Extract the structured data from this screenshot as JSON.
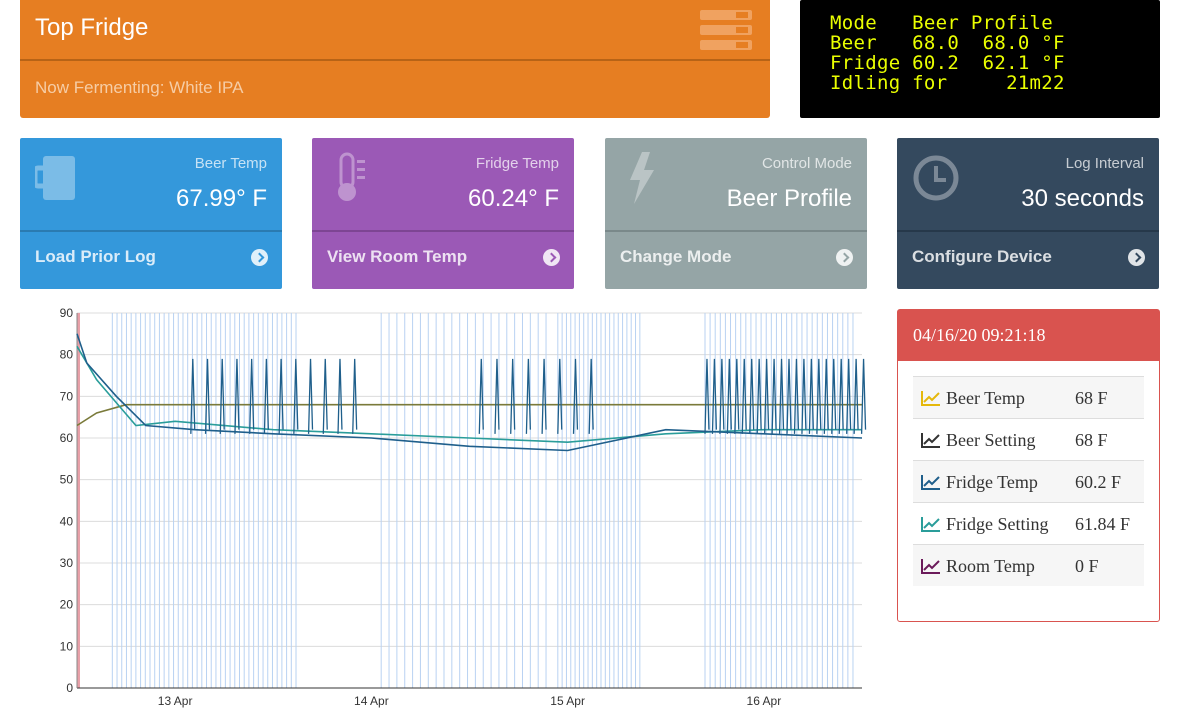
{
  "header": {
    "title": "Top Fridge",
    "subtitle": "Now Fermenting: White IPA"
  },
  "lcd": {
    "lines": [
      "Mode   Beer Profile",
      "Beer   68.0  68.0 °F",
      "Fridge 60.2  62.1 °F",
      "Idling for     21m22"
    ]
  },
  "tiles": [
    {
      "caption": "Beer Temp",
      "value": "67.99° F",
      "link": "Load Prior Log",
      "icon": "mug-icon",
      "color": "#3498db"
    },
    {
      "caption": "Fridge Temp",
      "value": "60.24° F",
      "link": "View Room Temp",
      "icon": "thermometer-icon",
      "color": "#9b59b6"
    },
    {
      "caption": "Control Mode",
      "value": "Beer Profile",
      "link": "Change Mode",
      "icon": "bolt-icon",
      "color": "#95a5a6"
    },
    {
      "caption": "Log Interval",
      "value": "30 seconds",
      "link": "Configure Device",
      "icon": "clock-icon",
      "color": "#34495e"
    }
  ],
  "legend": {
    "date": "04/16/20 09:21:18",
    "rows": [
      {
        "name": "Beer Temp",
        "value": "68 F",
        "color": "#e5b80b"
      },
      {
        "name": "Beer Setting",
        "value": "68 F",
        "color": "#333333"
      },
      {
        "name": "Fridge Temp",
        "value": "60.2 F",
        "color": "#1f5f8b"
      },
      {
        "name": "Fridge Setting",
        "value": "61.84 F",
        "color": "#2a9d9a"
      },
      {
        "name": "Room Temp",
        "value": "0 F",
        "color": "#6b1a5a"
      }
    ]
  },
  "chart_data": {
    "type": "line",
    "xlabel": "",
    "ylabel": "",
    "x_ticks": [
      "13 Apr",
      "14 Apr",
      "15 Apr",
      "16 Apr"
    ],
    "y_ticks": [
      0,
      10,
      20,
      30,
      40,
      50,
      60,
      70,
      80,
      90
    ],
    "ylim": [
      0,
      90
    ],
    "grid": true,
    "series": [
      {
        "name": "Beer Setting",
        "color": "#7a7a3a",
        "points": [
          [
            0,
            63
          ],
          [
            0.1,
            66
          ],
          [
            0.25,
            68
          ],
          [
            4.0,
            68
          ]
        ]
      },
      {
        "name": "Fridge Setting",
        "color": "#2a9d9a",
        "points": [
          [
            0,
            82
          ],
          [
            0.1,
            74
          ],
          [
            0.3,
            63
          ],
          [
            0.5,
            64
          ],
          [
            1.0,
            62
          ],
          [
            1.5,
            61
          ],
          [
            2.0,
            60
          ],
          [
            2.5,
            59
          ],
          [
            3.0,
            61
          ],
          [
            3.5,
            62
          ],
          [
            4.0,
            62
          ]
        ]
      },
      {
        "name": "Fridge Temp",
        "color": "#1f5f8b",
        "points": [
          [
            0,
            85
          ],
          [
            0.05,
            78
          ],
          [
            0.2,
            70
          ],
          [
            0.35,
            63
          ],
          [
            0.6,
            62
          ],
          [
            1.0,
            61
          ],
          [
            1.5,
            60
          ],
          [
            2.0,
            58
          ],
          [
            2.5,
            57
          ],
          [
            3.0,
            62
          ],
          [
            3.5,
            61
          ],
          [
            4.0,
            60
          ]
        ]
      }
    ]
  }
}
